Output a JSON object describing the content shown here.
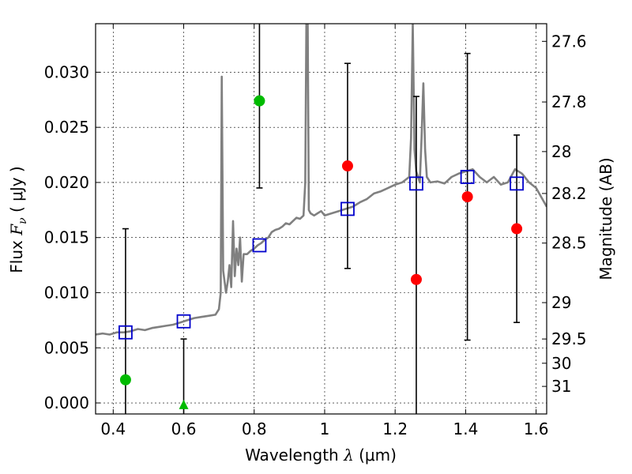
{
  "chart_data": {
    "type": "scatter",
    "xlabel_text": "Wavelength  ",
    "xlabel_sym": "λ",
    "xlabel_unit": " (μm)",
    "ylabel_text": "Flux  ",
    "ylabel_sym": "F",
    "ylabel_sub": "ν",
    "ylabel_unit": "  ( μJy )",
    "y2label": "Magnitude (AB)",
    "xlim": [
      0.35,
      1.63
    ],
    "ylim": [
      -0.001,
      0.0344
    ],
    "x_ticks": [
      0.4,
      0.6,
      0.8,
      1.0,
      1.2,
      1.4,
      1.6
    ],
    "x_tick_labels": [
      "0.4",
      "0.6",
      "0.8",
      "1",
      "1.2",
      "1.4",
      "1.6"
    ],
    "y_ticks": [
      0.0,
      0.005,
      0.01,
      0.015,
      0.02,
      0.025,
      0.03
    ],
    "y_tick_labels": [
      "0.000",
      "0.005",
      "0.010",
      "0.015",
      "0.020",
      "0.025",
      "0.030"
    ],
    "y2_ticks": [
      {
        "label": "27.6",
        "flux": 0.0328
      },
      {
        "label": "27.8",
        "flux": 0.0273
      },
      {
        "label": "28",
        "flux": 0.0228
      },
      {
        "label": "28.2",
        "flux": 0.019
      },
      {
        "label": "28.5",
        "flux": 0.0145
      },
      {
        "label": "29",
        "flux": 0.0091
      },
      {
        "label": "29.5",
        "flux": 0.0058
      },
      {
        "label": "30",
        "flux": 0.0036
      },
      {
        "label": "31",
        "flux": 0.0015
      }
    ],
    "grid": true,
    "colors": {
      "spectrum": "#808080",
      "model": "#0000cc",
      "detection": "#ff0000",
      "limit": "#00bb00",
      "errorbar": "#000000"
    },
    "spectrum": {
      "x": [
        0.35,
        0.37,
        0.39,
        0.41,
        0.43,
        0.45,
        0.47,
        0.49,
        0.51,
        0.53,
        0.55,
        0.57,
        0.59,
        0.61,
        0.63,
        0.65,
        0.67,
        0.69,
        0.7,
        0.705,
        0.708,
        0.712,
        0.72,
        0.725,
        0.73,
        0.735,
        0.74,
        0.745,
        0.75,
        0.755,
        0.76,
        0.765,
        0.77,
        0.78,
        0.79,
        0.8,
        0.81,
        0.82,
        0.83,
        0.84,
        0.85,
        0.86,
        0.87,
        0.88,
        0.89,
        0.9,
        0.91,
        0.92,
        0.93,
        0.94,
        0.945,
        0.948,
        0.95,
        0.952,
        0.955,
        0.96,
        0.97,
        0.98,
        0.99,
        1.0,
        1.02,
        1.04,
        1.06,
        1.08,
        1.1,
        1.12,
        1.14,
        1.16,
        1.18,
        1.2,
        1.22,
        1.24,
        1.245,
        1.25,
        1.255,
        1.26,
        1.27,
        1.275,
        1.28,
        1.285,
        1.29,
        1.3,
        1.32,
        1.34,
        1.36,
        1.38,
        1.4,
        1.42,
        1.44,
        1.46,
        1.48,
        1.5,
        1.52,
        1.54,
        1.56,
        1.58,
        1.6,
        1.63
      ],
      "y": [
        0.0062,
        0.0063,
        0.0062,
        0.0064,
        0.0064,
        0.0065,
        0.0067,
        0.0066,
        0.0068,
        0.0069,
        0.007,
        0.0071,
        0.0073,
        0.0075,
        0.0077,
        0.0078,
        0.0079,
        0.008,
        0.0085,
        0.01,
        0.0296,
        0.012,
        0.01,
        0.011,
        0.0125,
        0.0105,
        0.0165,
        0.0115,
        0.014,
        0.0125,
        0.015,
        0.011,
        0.0135,
        0.0135,
        0.0138,
        0.014,
        0.0143,
        0.0145,
        0.0148,
        0.015,
        0.0155,
        0.0157,
        0.0158,
        0.016,
        0.0163,
        0.0162,
        0.0165,
        0.0168,
        0.0167,
        0.017,
        0.02,
        0.0344,
        0.0344,
        0.0344,
        0.0175,
        0.0172,
        0.017,
        0.0172,
        0.0174,
        0.017,
        0.0172,
        0.0174,
        0.0176,
        0.0178,
        0.0182,
        0.0185,
        0.019,
        0.0192,
        0.0195,
        0.0198,
        0.02,
        0.0205,
        0.024,
        0.0344,
        0.023,
        0.021,
        0.02,
        0.024,
        0.029,
        0.023,
        0.0205,
        0.02,
        0.0201,
        0.0199,
        0.0205,
        0.0208,
        0.021,
        0.0212,
        0.0205,
        0.02,
        0.0205,
        0.0198,
        0.02,
        0.0212,
        0.0208,
        0.02,
        0.0195,
        0.0178
      ]
    },
    "model_photometry": {
      "x": [
        0.435,
        0.6,
        0.815,
        1.065,
        1.26,
        1.405,
        1.545
      ],
      "y": [
        0.0064,
        0.0074,
        0.0143,
        0.0176,
        0.0199,
        0.0205,
        0.0199
      ]
    },
    "detections": [
      {
        "x": 1.065,
        "y": 0.0215,
        "err_low": 0.0122,
        "err_high": 0.0308
      },
      {
        "x": 1.26,
        "y": 0.0112,
        "err_low": -0.001,
        "err_high": 0.0278
      },
      {
        "x": 1.405,
        "y": 0.0187,
        "err_low": 0.0057,
        "err_high": 0.0317
      },
      {
        "x": 1.545,
        "y": 0.0158,
        "err_low": 0.0073,
        "err_high": 0.0243
      }
    ],
    "limits": [
      {
        "x": 0.435,
        "y": 0.0021,
        "err_low": -0.001,
        "err_high": 0.0158,
        "marker": "circle"
      },
      {
        "x": 0.6,
        "y": -0.0002,
        "err_low": -0.001,
        "err_high": 0.0058,
        "marker": "triangle"
      },
      {
        "x": 0.815,
        "y": 0.0274,
        "err_low": 0.0195,
        "err_high": 0.0344,
        "marker": "circle"
      }
    ]
  }
}
